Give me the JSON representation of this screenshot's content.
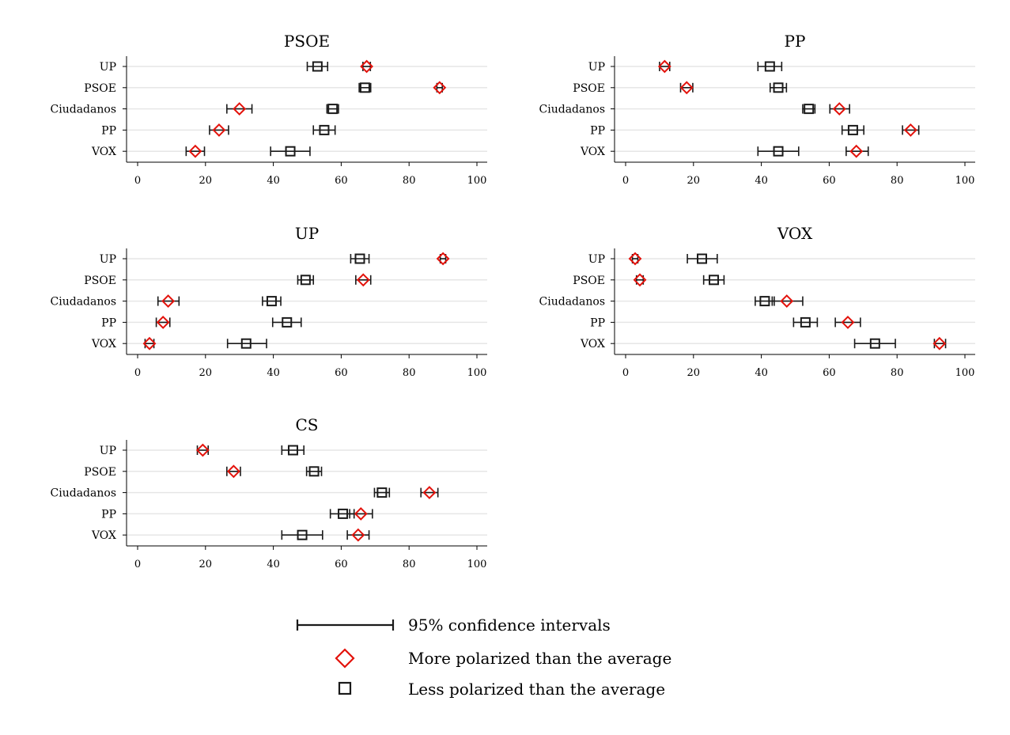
{
  "chart_data": [
    {
      "type": "scatter",
      "title": "PSOE",
      "categories": [
        "UP",
        "PSOE",
        "Ciudadanos",
        "PP",
        "VOX"
      ],
      "xlim": [
        0,
        100
      ],
      "xticks": [
        0,
        20,
        40,
        60,
        80,
        100
      ],
      "grid": "horizontal",
      "series": [
        {
          "name": "More polarized than the average",
          "points": [
            {
              "category": "UP",
              "value": 67.5,
              "ci": [
                66.4,
                68.6
              ]
            },
            {
              "category": "PSOE",
              "value": 89,
              "ci": [
                88.2,
                89.8
              ]
            },
            {
              "category": "Ciudadanos",
              "value": 30,
              "ci": [
                26.3,
                33.7
              ]
            },
            {
              "category": "PP",
              "value": 24,
              "ci": [
                21.2,
                26.8
              ]
            },
            {
              "category": "VOX",
              "value": 17,
              "ci": [
                14.3,
                19.7
              ]
            }
          ]
        },
        {
          "name": "Less polarized than the average",
          "points": [
            {
              "category": "UP",
              "value": 53,
              "ci": [
                50,
                56
              ]
            },
            {
              "category": "PSOE",
              "value": 67,
              "ci": [
                65.3,
                68.7
              ]
            },
            {
              "category": "Ciudadanos",
              "value": 57.5,
              "ci": [
                55.8,
                59.2
              ]
            },
            {
              "category": "PP",
              "value": 55,
              "ci": [
                51.8,
                58.2
              ]
            },
            {
              "category": "VOX",
              "value": 45,
              "ci": [
                39.2,
                50.8
              ]
            }
          ]
        }
      ]
    },
    {
      "type": "scatter",
      "title": "PP",
      "categories": [
        "UP",
        "PSOE",
        "Ciudadanos",
        "PP",
        "VOX"
      ],
      "xlim": [
        0,
        100
      ],
      "xticks": [
        0,
        20,
        40,
        60,
        80,
        100
      ],
      "grid": "horizontal",
      "series": [
        {
          "name": "More polarized than the average",
          "points": [
            {
              "category": "UP",
              "value": 11.5,
              "ci": [
                10,
                13
              ]
            },
            {
              "category": "PSOE",
              "value": 18,
              "ci": [
                16.2,
                19.8
              ]
            },
            {
              "category": "Ciudadanos",
              "value": 63,
              "ci": [
                60.2,
                66
              ]
            },
            {
              "category": "PP",
              "value": 84,
              "ci": [
                81.6,
                86.4
              ]
            },
            {
              "category": "VOX",
              "value": 68,
              "ci": [
                65,
                71.5
              ]
            }
          ]
        },
        {
          "name": "Less polarized than the average",
          "points": [
            {
              "category": "UP",
              "value": 42.5,
              "ci": [
                39,
                46
              ]
            },
            {
              "category": "PSOE",
              "value": 45,
              "ci": [
                42.6,
                47.4
              ]
            },
            {
              "category": "Ciudadanos",
              "value": 54,
              "ci": [
                52.2,
                55.8
              ]
            },
            {
              "category": "PP",
              "value": 67,
              "ci": [
                63.8,
                70.2
              ]
            },
            {
              "category": "VOX",
              "value": 45,
              "ci": [
                39,
                51
              ]
            }
          ]
        }
      ]
    },
    {
      "type": "scatter",
      "title": "UP",
      "categories": [
        "UP",
        "PSOE",
        "Ciudadanos",
        "PP",
        "VOX"
      ],
      "xlim": [
        0,
        100
      ],
      "xticks": [
        0,
        20,
        40,
        60,
        80,
        100
      ],
      "grid": "horizontal",
      "series": [
        {
          "name": "More polarized than the average",
          "points": [
            {
              "category": "UP",
              "value": 90,
              "ci": [
                89.2,
                90.8
              ]
            },
            {
              "category": "PSOE",
              "value": 66.5,
              "ci": [
                64.3,
                68.7
              ]
            },
            {
              "category": "Ciudadanos",
              "value": 9,
              "ci": [
                6,
                12.2
              ]
            },
            {
              "category": "PP",
              "value": 7.5,
              "ci": [
                5.5,
                9.5
              ]
            },
            {
              "category": "VOX",
              "value": 3.5,
              "ci": [
                2.2,
                4.8
              ]
            }
          ]
        },
        {
          "name": "Less polarized than the average",
          "points": [
            {
              "category": "UP",
              "value": 65.5,
              "ci": [
                62.8,
                68.2
              ]
            },
            {
              "category": "PSOE",
              "value": 49.5,
              "ci": [
                47.2,
                51.8
              ]
            },
            {
              "category": "Ciudadanos",
              "value": 39.5,
              "ci": [
                36.8,
                42.2
              ]
            },
            {
              "category": "PP",
              "value": 44,
              "ci": [
                39.8,
                48.2
              ]
            },
            {
              "category": "VOX",
              "value": 32,
              "ci": [
                26.5,
                38
              ]
            }
          ]
        }
      ]
    },
    {
      "type": "scatter",
      "title": "VOX",
      "categories": [
        "UP",
        "PSOE",
        "Ciudadanos",
        "PP",
        "VOX"
      ],
      "xlim": [
        0,
        100
      ],
      "xticks": [
        0,
        20,
        40,
        60,
        80,
        100
      ],
      "grid": "horizontal",
      "series": [
        {
          "name": "More polarized than the average",
          "points": [
            {
              "category": "UP",
              "value": 2.8,
              "ci": [
                2,
                3.6
              ]
            },
            {
              "category": "PSOE",
              "value": 4.2,
              "ci": [
                3.2,
                5.2
              ]
            },
            {
              "category": "Ciudadanos",
              "value": 47.5,
              "ci": [
                43.2,
                52.2
              ]
            },
            {
              "category": "PP",
              "value": 65.5,
              "ci": [
                61.8,
                69.2
              ]
            },
            {
              "category": "VOX",
              "value": 92.5,
              "ci": [
                91,
                94.3
              ]
            }
          ]
        },
        {
          "name": "Less polarized than the average",
          "points": [
            {
              "category": "UP",
              "value": 22.5,
              "ci": [
                18.2,
                27
              ]
            },
            {
              "category": "PSOE",
              "value": 26,
              "ci": [
                23,
                29
              ]
            },
            {
              "category": "Ciudadanos",
              "value": 41,
              "ci": [
                38.2,
                43.8
              ]
            },
            {
              "category": "PP",
              "value": 53,
              "ci": [
                49.5,
                56.5
              ]
            },
            {
              "category": "VOX",
              "value": 73.5,
              "ci": [
                67.5,
                79.5
              ]
            }
          ]
        }
      ]
    },
    {
      "type": "scatter",
      "title": "CS",
      "categories": [
        "UP",
        "PSOE",
        "Ciudadanos",
        "PP",
        "VOX"
      ],
      "xlim": [
        0,
        100
      ],
      "xticks": [
        0,
        20,
        40,
        60,
        80,
        100
      ],
      "grid": "horizontal",
      "series": [
        {
          "name": "More polarized than the average",
          "points": [
            {
              "category": "UP",
              "value": 19.2,
              "ci": [
                17.6,
                20.8
              ]
            },
            {
              "category": "PSOE",
              "value": 28.3,
              "ci": [
                26.3,
                30.3
              ]
            },
            {
              "category": "Ciudadanos",
              "value": 86,
              "ci": [
                83.5,
                88.5
              ]
            },
            {
              "category": "PP",
              "value": 65.8,
              "ci": [
                62.5,
                69.2
              ]
            },
            {
              "category": "VOX",
              "value": 65,
              "ci": [
                61.8,
                68.2
              ]
            }
          ]
        },
        {
          "name": "Less polarized than the average",
          "points": [
            {
              "category": "UP",
              "value": 45.8,
              "ci": [
                42.5,
                49
              ]
            },
            {
              "category": "PSOE",
              "value": 52,
              "ci": [
                49.8,
                54.2
              ]
            },
            {
              "category": "Ciudadanos",
              "value": 72,
              "ci": [
                69.8,
                74.2
              ]
            },
            {
              "category": "PP",
              "value": 60.5,
              "ci": [
                56.8,
                63.8
              ]
            },
            {
              "category": "VOX",
              "value": 48.5,
              "ci": [
                42.5,
                54.5
              ]
            }
          ]
        }
      ]
    }
  ],
  "legend": {
    "ci_label": "95% confidence intervals",
    "more_label": "More polarized than the average",
    "less_label": "Less polarized than the average"
  },
  "colors": {
    "more": "#e3120b",
    "less": "#1a1a1a",
    "grid": "#e6e6e6",
    "axis": "#000000"
  }
}
